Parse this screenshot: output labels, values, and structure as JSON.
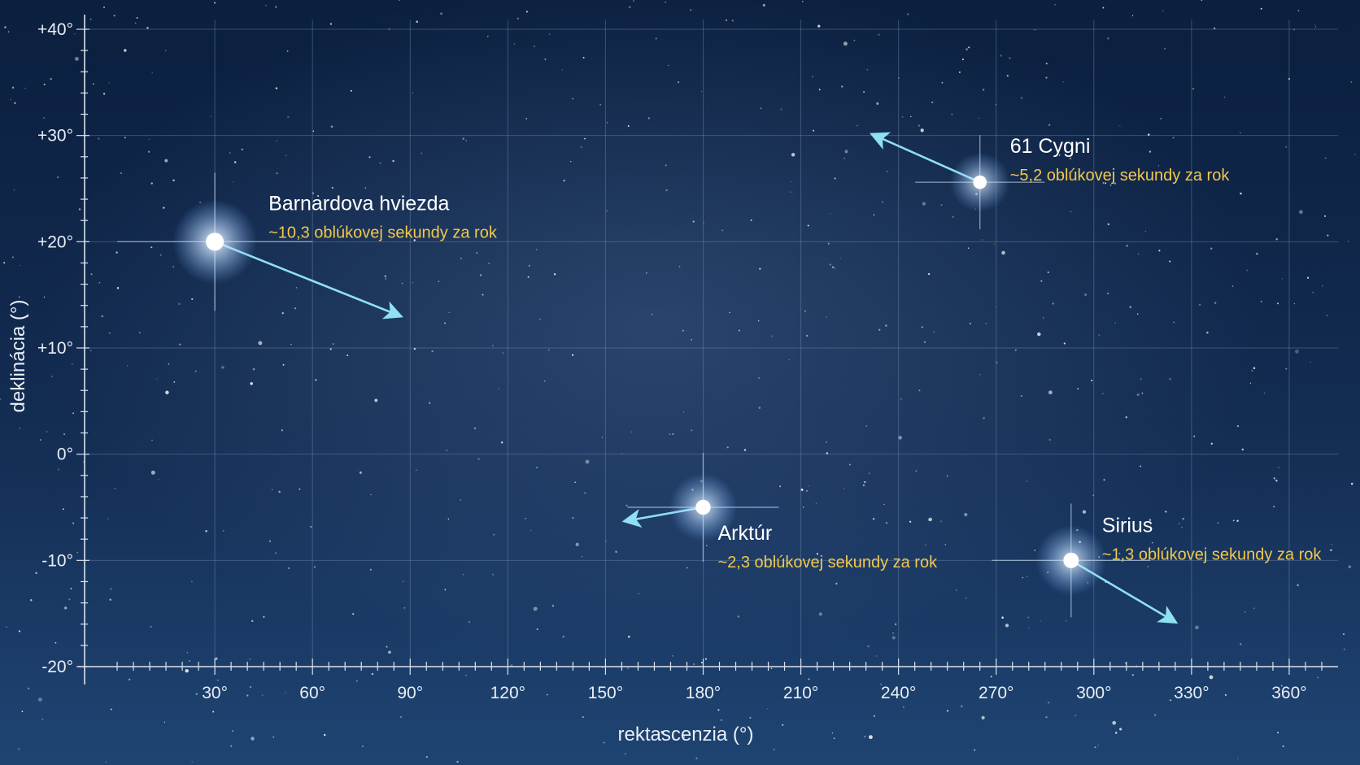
{
  "colors": {
    "sky_top": "#0b1f3e",
    "sky_mid": "#132c52",
    "sky_bottom": "#1f4472",
    "grid": "#6f89ad",
    "axis": "#d9e2ee",
    "arrow": "#8fe0f2",
    "name_text": "#ffffff",
    "speed_text": "#f2c84b"
  },
  "chart_data": {
    "type": "scatter",
    "title": "",
    "xlabel": "rektascenzia (°)",
    "ylabel": "deklinácia (°)",
    "xlim": [
      -10,
      375
    ],
    "ylim": [
      -20,
      40
    ],
    "x_ticks": [
      30,
      60,
      90,
      120,
      150,
      180,
      210,
      240,
      270,
      300,
      330,
      360
    ],
    "x_tick_labels": [
      "30°",
      "60°",
      "90°",
      "120°",
      "150°",
      "180°",
      "210°",
      "240°",
      "270°",
      "300°",
      "330°",
      "360°"
    ],
    "y_ticks": [
      40,
      30,
      20,
      10,
      0,
      -10,
      -20
    ],
    "y_tick_labels": [
      "+40°",
      "+30°",
      "+20°",
      "+10°",
      "0°",
      "-10°",
      "-20°"
    ],
    "grid": true,
    "points": [
      {
        "name": "Barnardova hviezda",
        "speed": "~10,3 oblúkovej sekundy za rok",
        "x": 30,
        "y": 20,
        "dx": 57,
        "dy": -7,
        "brightness": 1.0
      },
      {
        "name": "61 Cygni",
        "speed": "~5,2 oblúkovej sekundy za rok",
        "x": 265,
        "y": 25.6,
        "dx": -33,
        "dy": 4.5,
        "brightness": 0.55
      },
      {
        "name": "Arktúr",
        "speed": "~2,3 oblúkovej sekundy za rok",
        "x": 180,
        "y": -5,
        "dx": -24,
        "dy": -1.3,
        "brightness": 0.7
      },
      {
        "name": "Sirius",
        "speed": "~1,3 oblúkovej sekundy za rok",
        "x": 293,
        "y": -10,
        "dx": 32,
        "dy": -5.8,
        "brightness": 0.75
      }
    ]
  }
}
